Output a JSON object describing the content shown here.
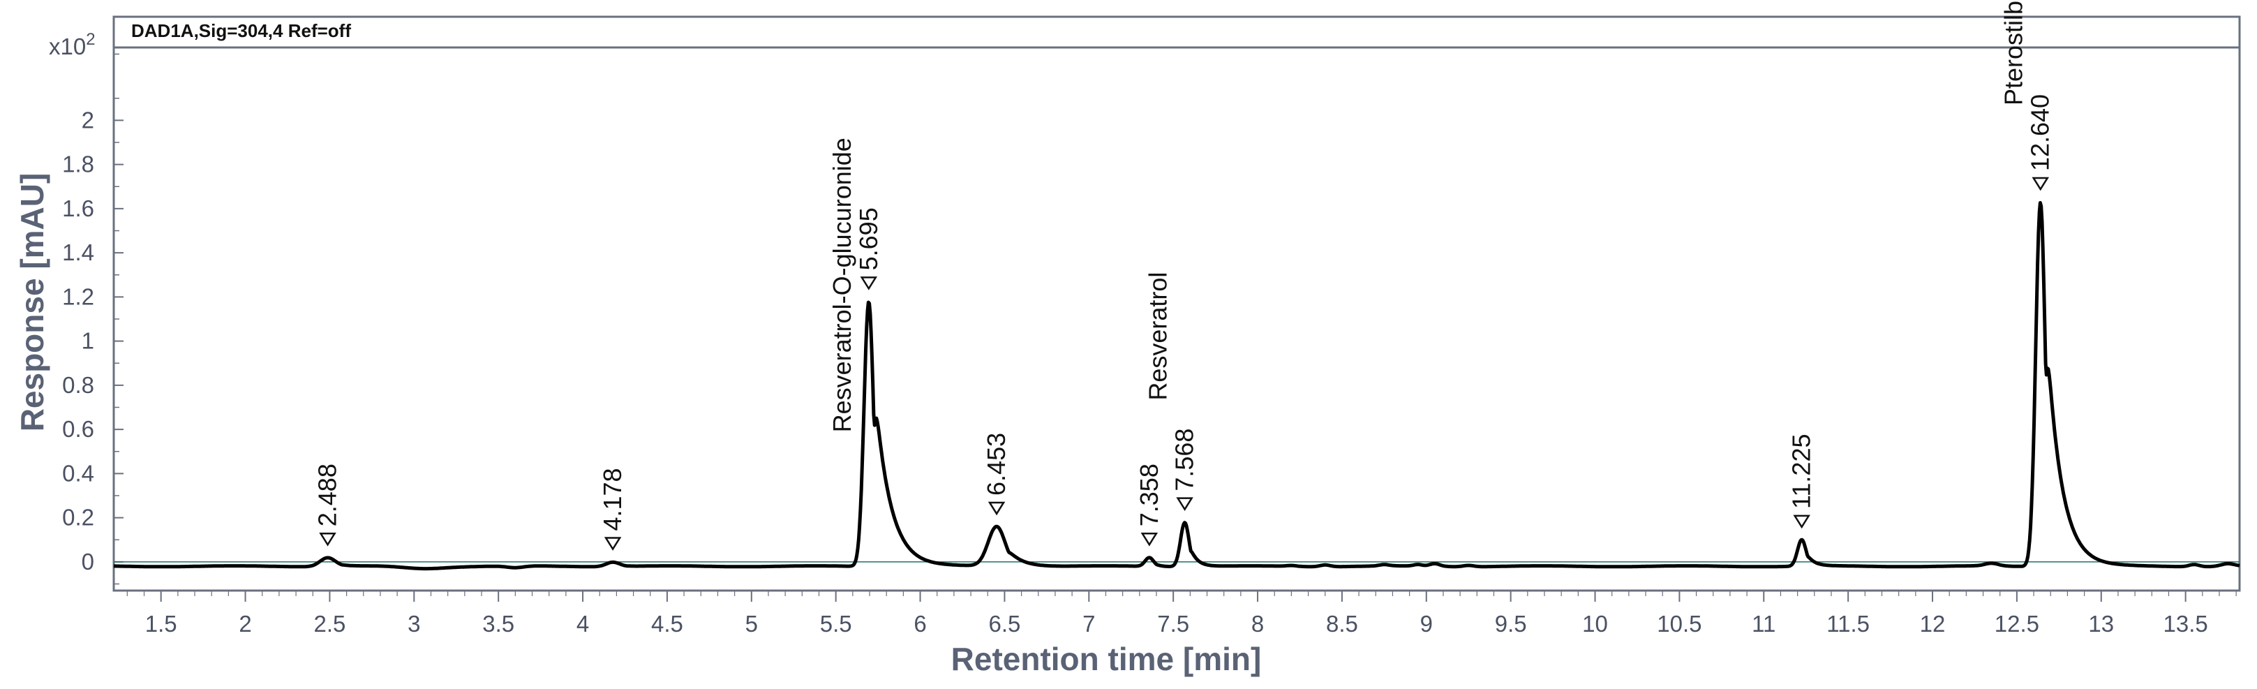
{
  "chart_data": {
    "type": "line",
    "signal_label": "DAD1A,Sig=304,4  Ref=off",
    "xlabel": "Retention time [min]",
    "ylabel": "Response [mAU]",
    "y_multiplier": "x10",
    "y_multiplier_exp": "2",
    "xlim": [
      1.22,
      13.82
    ],
    "ylim": [
      -0.13,
      2.33
    ],
    "x_ticks": [
      "1.5",
      "2",
      "2.5",
      "3",
      "3.5",
      "4",
      "4.5",
      "5",
      "5.5",
      "6",
      "6.5",
      "7",
      "7.5",
      "8",
      "8.5",
      "9",
      "9.5",
      "10",
      "10.5",
      "11",
      "11.5",
      "12",
      "12.5",
      "13",
      "13.5"
    ],
    "y_ticks": [
      "0",
      "0.2",
      "0.4",
      "0.6",
      "0.8",
      "1",
      "1.2",
      "1.4",
      "1.6",
      "1.8",
      "2"
    ],
    "baseline": -0.02,
    "peaks": [
      {
        "label": "2.488",
        "rt": 2.488,
        "height": 0.04,
        "sigma": 0.045,
        "tau": 0.05
      },
      {
        "label": "4.178",
        "rt": 4.178,
        "height": 0.02,
        "sigma": 0.04,
        "tau": 0.04
      },
      {
        "label": "5.695",
        "rt": 5.695,
        "height": 1.2,
        "sigma": 0.028,
        "tau": 0.09,
        "compound": "Resveratrol-O-glucuronide"
      },
      {
        "label": "6.453",
        "rt": 6.453,
        "height": 0.18,
        "sigma": 0.05,
        "tau": 0.08
      },
      {
        "label": "7.358",
        "rt": 7.358,
        "height": 0.04,
        "sigma": 0.025,
        "tau": 0.03
      },
      {
        "label": "7.568",
        "rt": 7.568,
        "height": 0.2,
        "sigma": 0.025,
        "tau": 0.04,
        "compound": "Resveratrol"
      },
      {
        "label": "11.225",
        "rt": 11.225,
        "height": 0.12,
        "sigma": 0.025,
        "tau": 0.04
      },
      {
        "label": "12.640",
        "rt": 12.64,
        "height": 1.65,
        "sigma": 0.028,
        "tau": 0.085,
        "compound": "Pterostilbene"
      }
    ]
  }
}
